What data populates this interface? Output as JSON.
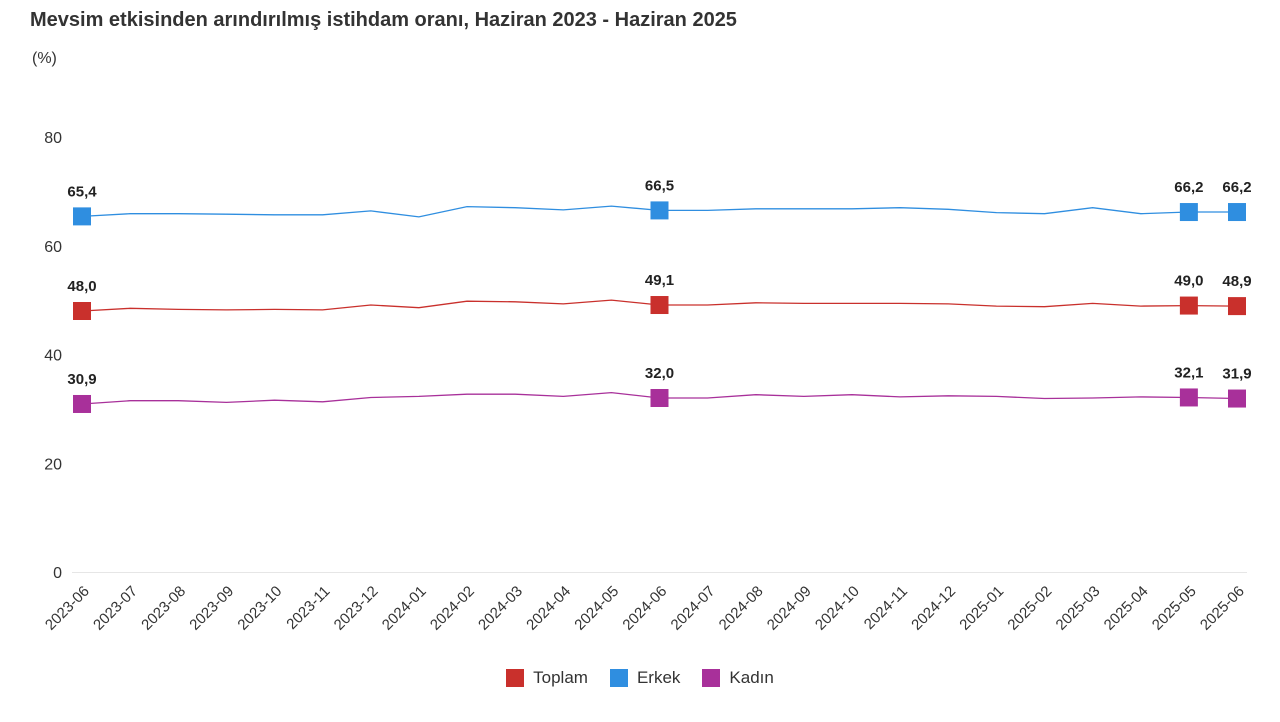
{
  "chart_data": {
    "type": "line",
    "title": "Mevsim etkisinden arındırılmış istihdam oranı, Haziran 2023 - Haziran 2025",
    "ylabel": "(%)",
    "ylim": [
      0,
      80
    ],
    "yticks": [
      "0",
      "20",
      "40",
      "60",
      "80"
    ],
    "ytick_values": [
      0,
      20,
      40,
      60,
      80
    ],
    "categories": [
      "2023-06",
      "2023-07",
      "2023-08",
      "2023-09",
      "2023-10",
      "2023-11",
      "2023-12",
      "2024-01",
      "2024-02",
      "2024-03",
      "2024-04",
      "2024-05",
      "2024-06",
      "2024-07",
      "2024-08",
      "2024-09",
      "2024-10",
      "2024-11",
      "2024-12",
      "2025-01",
      "2025-02",
      "2025-03",
      "2025-04",
      "2025-05",
      "2025-06"
    ],
    "legend_position": "bottom",
    "series": [
      {
        "name": "Toplam",
        "color": "#c9302c",
        "values": [
          48.0,
          48.5,
          48.3,
          48.2,
          48.3,
          48.2,
          49.1,
          48.6,
          49.8,
          49.7,
          49.3,
          50.0,
          49.1,
          49.1,
          49.5,
          49.4,
          49.4,
          49.4,
          49.3,
          48.9,
          48.8,
          49.4,
          48.9,
          49.0,
          48.9
        ],
        "point_labels": {
          "0": "48,0",
          "12": "49,1",
          "23": "49,0",
          "24": "48,9"
        }
      },
      {
        "name": "Erkek",
        "color": "#2f8ee0",
        "values": [
          65.4,
          65.9,
          65.9,
          65.8,
          65.7,
          65.7,
          66.4,
          65.3,
          67.2,
          67.0,
          66.6,
          67.3,
          66.5,
          66.5,
          66.8,
          66.8,
          66.8,
          67.0,
          66.7,
          66.1,
          65.9,
          67.0,
          65.9,
          66.2,
          66.2
        ],
        "point_labels": {
          "0": "65,4",
          "12": "66,5",
          "23": "66,2",
          "24": "66,2"
        }
      },
      {
        "name": "Kadın",
        "color": "#a8309a",
        "values": [
          30.9,
          31.5,
          31.5,
          31.2,
          31.6,
          31.3,
          32.1,
          32.3,
          32.7,
          32.7,
          32.3,
          33.0,
          32.0,
          32.0,
          32.6,
          32.3,
          32.6,
          32.2,
          32.4,
          32.3,
          31.9,
          32.0,
          32.2,
          32.1,
          31.9
        ],
        "point_labels": {
          "0": "30,9",
          "12": "32,0",
          "23": "32,1",
          "24": "31,9"
        }
      }
    ]
  }
}
